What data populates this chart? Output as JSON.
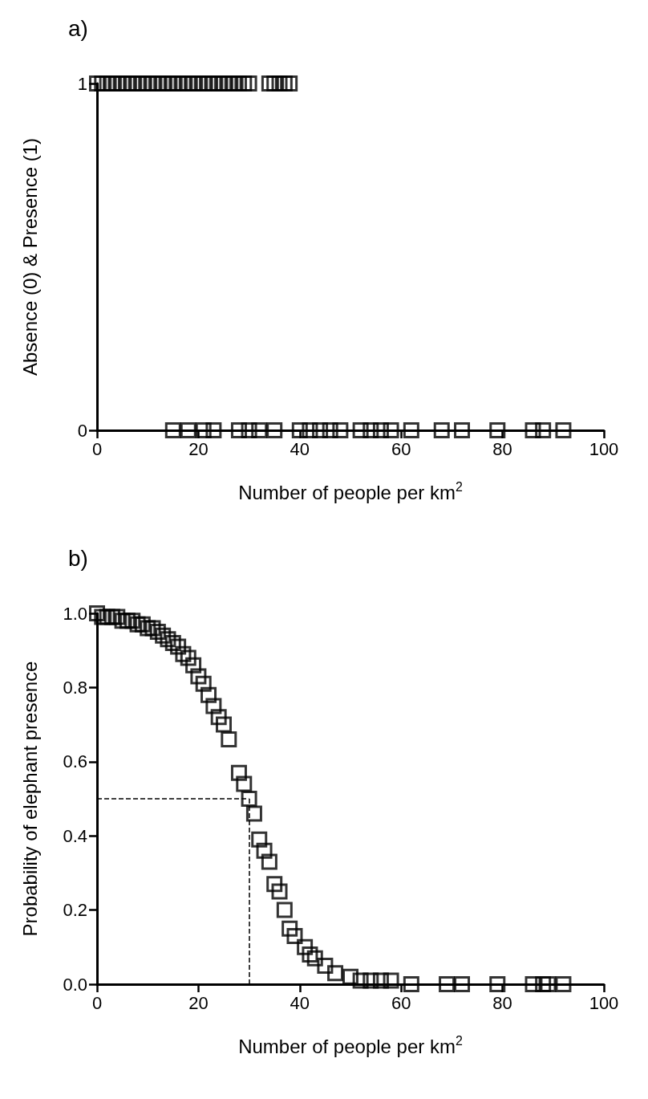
{
  "chart_data": [
    {
      "type": "scatter",
      "title": "a)",
      "xlabel": "Number of people per km$^{2}$",
      "ylabel": "Absence (0) & Presence (1)",
      "xlim": [
        0,
        100
      ],
      "xticks": [
        0,
        20,
        40,
        60,
        80,
        100
      ],
      "ylim": [
        0,
        1
      ],
      "yticks": [
        0,
        1
      ],
      "marker": "square",
      "series": [
        {
          "color": "#000000",
          "x": [
            0,
            1,
            2,
            3,
            4,
            5,
            6,
            7,
            8,
            9,
            10,
            11,
            12,
            13,
            14,
            15,
            16,
            17,
            18,
            19,
            20,
            21,
            22,
            23,
            24,
            25,
            26,
            27,
            28,
            29,
            30,
            34,
            35,
            36,
            37,
            38,
            15,
            18,
            21,
            23,
            28,
            30,
            32,
            35,
            40,
            42,
            44,
            46,
            48,
            52,
            54,
            56,
            58,
            62,
            68,
            72,
            79,
            86,
            88,
            92
          ],
          "values": [
            1,
            1,
            1,
            1,
            1,
            1,
            1,
            1,
            1,
            1,
            1,
            1,
            1,
            1,
            1,
            1,
            1,
            1,
            1,
            1,
            1,
            1,
            1,
            1,
            1,
            1,
            1,
            1,
            1,
            1,
            1,
            1,
            1,
            1,
            1,
            1,
            0,
            0,
            0,
            0,
            0,
            0,
            0,
            0,
            0,
            0,
            0,
            0,
            0,
            0,
            0,
            0,
            0,
            0,
            0,
            0,
            0,
            0,
            0,
            0
          ]
        }
      ]
    },
    {
      "type": "scatter",
      "title": "b)",
      "xlabel": "Number of people per km$^{2}$",
      "ylabel": "Probability of elephant presence",
      "xlim": [
        0,
        100
      ],
      "xticks": [
        0,
        20,
        40,
        60,
        80,
        100
      ],
      "ylim": [
        0,
        1
      ],
      "yticks": [
        {
          "value": 0,
          "label": "0.0"
        },
        {
          "value": 0.2,
          "label": "0.2"
        },
        {
          "value": 0.4,
          "label": "0.4"
        },
        {
          "value": 0.6,
          "label": "0.6"
        },
        {
          "value": 0.8,
          "label": "0.8"
        },
        {
          "value": 1,
          "label": "1.0"
        }
      ],
      "marker": "square",
      "ref_lines": [
        {
          "axis": "y",
          "value": 0.5,
          "line_style": "dashed",
          "color": "#000000"
        },
        {
          "axis": "x",
          "value": 30,
          "line_style": "dashed",
          "color": "#000000"
        }
      ],
      "series": [
        {
          "color": "#000000",
          "x": [
            0,
            1,
            2,
            3,
            4,
            5,
            6,
            7,
            8,
            9,
            10,
            11,
            12,
            13,
            14,
            15,
            16,
            17,
            18,
            19,
            20,
            21,
            22,
            23,
            24,
            25,
            26,
            28,
            29,
            30,
            31,
            32,
            33,
            34,
            35,
            36,
            37,
            38,
            39,
            41,
            42,
            43,
            45,
            47,
            50,
            52,
            54,
            56,
            58,
            62,
            69,
            72,
            79,
            86,
            88,
            89,
            92
          ],
          "values": [
            1.0,
            0.99,
            0.99,
            0.99,
            0.99,
            0.98,
            0.98,
            0.98,
            0.97,
            0.97,
            0.96,
            0.96,
            0.95,
            0.94,
            0.93,
            0.92,
            0.91,
            0.89,
            0.88,
            0.86,
            0.83,
            0.81,
            0.78,
            0.75,
            0.72,
            0.7,
            0.66,
            0.57,
            0.54,
            0.5,
            0.46,
            0.39,
            0.36,
            0.33,
            0.27,
            0.25,
            0.2,
            0.15,
            0.13,
            0.1,
            0.08,
            0.07,
            0.05,
            0.03,
            0.02,
            0.01,
            0.01,
            0.01,
            0.01,
            0,
            0,
            0,
            0,
            0,
            0,
            0,
            0
          ]
        }
      ]
    }
  ]
}
